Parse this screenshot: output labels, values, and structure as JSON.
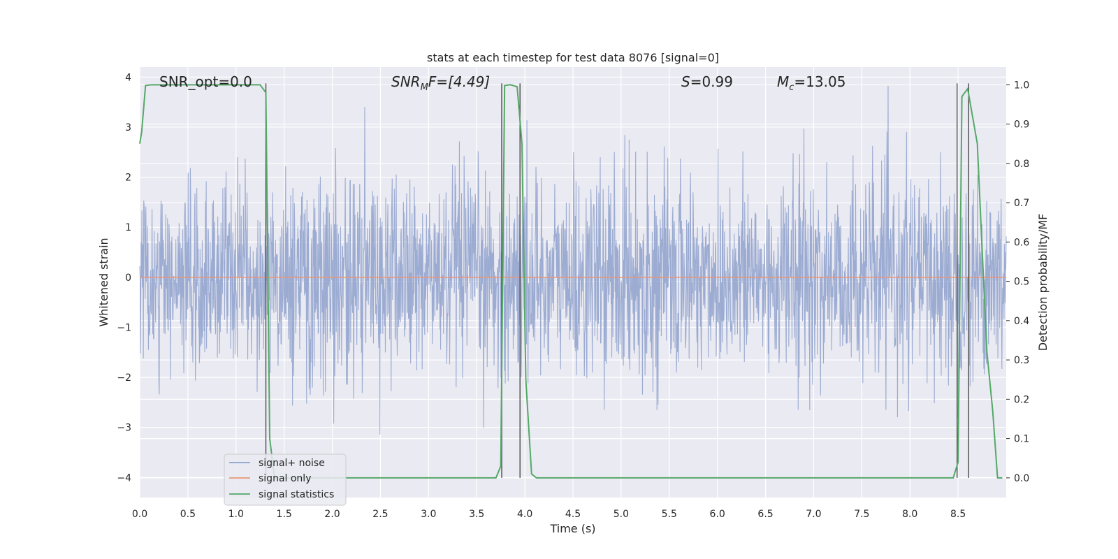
{
  "chart_data": {
    "type": "line",
    "title": "stats at each timestep for test data 8076 [signal=0]",
    "xlabel": "Time (s)",
    "ylabel": "Whitened strain",
    "y2label": "Detection probability/MF",
    "xlim": [
      0.0,
      9.0
    ],
    "ylim": [
      -4.4,
      4.2
    ],
    "y2lim": [
      -0.05,
      1.045
    ],
    "xticks": [
      "0.0",
      "0.5",
      "1.0",
      "1.5",
      "2.0",
      "2.5",
      "3.0",
      "3.5",
      "4.0",
      "4.5",
      "5.0",
      "5.5",
      "6.0",
      "6.5",
      "7.0",
      "7.5",
      "8.0",
      "8.5"
    ],
    "yticks": [
      "4",
      "3",
      "2",
      "1",
      "0",
      "−1",
      "−2",
      "−3",
      "−4"
    ],
    "y2ticks": [
      "1.0",
      "0.9",
      "0.8",
      "0.7",
      "0.6",
      "0.5",
      "0.4",
      "0.3",
      "0.2",
      "0.1",
      "0.0"
    ],
    "grid": true,
    "legend_position": "lower-left",
    "annotations": {
      "snr_opt": "SNR_opt=0.0",
      "snr_mf_sym": "SNR",
      "snr_mf_sub": "M",
      "snr_mf_rest": "F=[4.49]",
      "s_sym": "S",
      "s_val": "=0.99",
      "mc_sym": "M",
      "mc_sub": "c",
      "mc_val": "=13.05"
    },
    "series": [
      {
        "name": "signal+ noise",
        "color": "#8da0cb",
        "description_of_values": "whitened strain noise, approx standard normal, range about -4 to 4 over 0..9 s",
        "envelope": [
          -2.5,
          2.5
        ]
      },
      {
        "name": "signal only",
        "color": "#e9967a",
        "x": [
          0.0,
          9.0
        ],
        "y": [
          0.0,
          0.0
        ]
      },
      {
        "name": "signal statistics",
        "color": "#55a868",
        "axis": "right",
        "x": [
          0.0,
          0.02,
          0.06,
          0.12,
          0.5,
          1.0,
          1.25,
          1.31,
          1.35,
          1.4,
          1.45,
          2.0,
          3.0,
          3.7,
          3.75,
          3.79,
          3.85,
          3.92,
          3.97,
          4.01,
          4.07,
          4.12,
          5.0,
          6.0,
          7.0,
          8.0,
          8.45,
          8.5,
          8.54,
          8.6,
          8.65,
          8.7,
          8.75,
          8.8,
          8.86,
          8.91,
          8.96
        ],
        "y": [
          0.85,
          0.88,
          0.998,
          1.0,
          1.0,
          1.0,
          1.0,
          0.98,
          0.1,
          0.0,
          0.0,
          0.0,
          0.0,
          0.0,
          0.03,
          0.998,
          1.0,
          0.995,
          0.85,
          0.25,
          0.01,
          0.0,
          0.0,
          0.0,
          0.0,
          0.0,
          0.0,
          0.04,
          0.97,
          0.99,
          0.92,
          0.85,
          0.58,
          0.32,
          0.17,
          0.0,
          0.0
        ]
      }
    ],
    "vlines": [
      1.31,
      3.76,
      3.95,
      8.49,
      8.61
    ],
    "legend": [
      "signal+ noise",
      "signal only",
      "signal statistics"
    ]
  }
}
